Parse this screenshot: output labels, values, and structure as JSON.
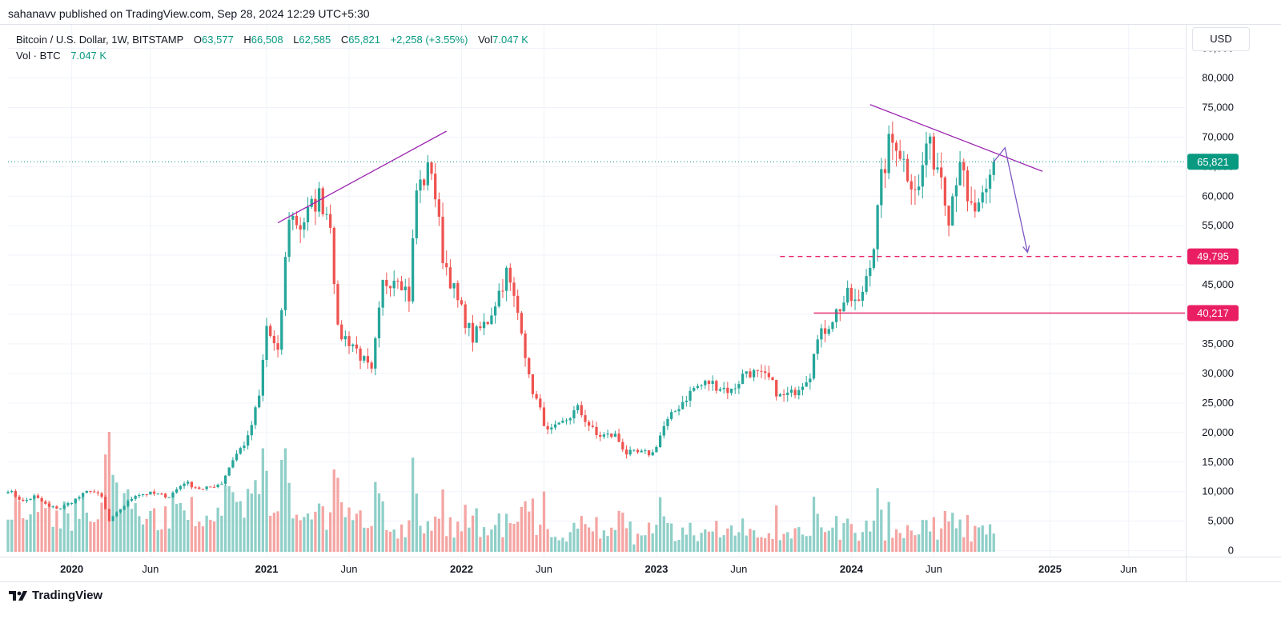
{
  "header": {
    "publisher_line": "sahanavv published on TradingView.com, Sep 28, 2024 12:29 UTC+5:30"
  },
  "legend": {
    "symbol": "Bitcoin / U.S. Dollar, 1W, BITSTAMP",
    "open_label": "O",
    "open": "63,577",
    "high_label": "H",
    "high": "66,508",
    "low_label": "L",
    "low": "62,585",
    "close_label": "C",
    "close": "65,821",
    "change": "+2,258 (+3.55%)",
    "vol_label": "Vol",
    "vol": "7.047 K",
    "vol_row_label": "Vol · BTC",
    "vol_row_value": "7.047 K"
  },
  "toolbar": {
    "currency": "USD"
  },
  "brand": {
    "name": "TradingView"
  },
  "colors": {
    "up": "#26a69a",
    "down": "#ef5350",
    "vol_up": "#8fcfc8",
    "vol_down": "#f4a5a3",
    "trendline": "#9c27b0",
    "support": "#e91e63",
    "last_price": "#089981",
    "grid": "#f0f3fa",
    "axis_text": "#131722"
  },
  "chart_data": {
    "type": "candlestick",
    "interval": "1W",
    "y_axis": {
      "ticks": [
        0,
        5000,
        10000,
        15000,
        20000,
        25000,
        30000,
        35000,
        40000,
        45000,
        50000,
        55000,
        60000,
        65000,
        70000,
        75000,
        80000,
        85000
      ],
      "tick_labels": [
        "0",
        "5,000",
        "10,000",
        "15,000",
        "20,000",
        "25,000",
        "30,000",
        "35,000",
        "40,000",
        "45,000",
        "50,000",
        "55,000",
        "60,000",
        "65,000",
        "70,000",
        "75,000",
        "80,000",
        "85,000"
      ],
      "range": [
        -1000,
        89000
      ],
      "side": "right"
    },
    "x_axis": {
      "range": [
        "2019-09-09",
        "2025-09-15"
      ],
      "ticks": [
        {
          "date": "2020-01-06",
          "label": "2020",
          "bold": true
        },
        {
          "date": "2020-06-01",
          "label": "Jun",
          "bold": false
        },
        {
          "date": "2021-01-04",
          "label": "2021",
          "bold": true
        },
        {
          "date": "2021-06-07",
          "label": "Jun",
          "bold": false
        },
        {
          "date": "2022-01-03",
          "label": "2022",
          "bold": true
        },
        {
          "date": "2022-06-06",
          "label": "Jun",
          "bold": false
        },
        {
          "date": "2023-01-02",
          "label": "2023",
          "bold": true
        },
        {
          "date": "2023-06-05",
          "label": "Jun",
          "bold": false
        },
        {
          "date": "2024-01-01",
          "label": "2024",
          "bold": true
        },
        {
          "date": "2024-06-03",
          "label": "Jun",
          "bold": false
        },
        {
          "date": "2025-01-06",
          "label": "2025",
          "bold": true
        },
        {
          "date": "2025-06-02",
          "label": "Jun",
          "bold": false
        }
      ]
    },
    "price_series": [
      {
        "date": "2019-09-09",
        "close": 10300
      },
      {
        "date": "2019-10-07",
        "close": 8300
      },
      {
        "date": "2019-10-28",
        "close": 9200
      },
      {
        "date": "2019-11-25",
        "close": 7400
      },
      {
        "date": "2019-12-16",
        "close": 7200
      },
      {
        "date": "2020-01-13",
        "close": 8700
      },
      {
        "date": "2020-02-10",
        "close": 10300
      },
      {
        "date": "2020-03-02",
        "close": 9000
      },
      {
        "date": "2020-03-16",
        "close": 5000
      },
      {
        "date": "2020-04-06",
        "close": 7000
      },
      {
        "date": "2020-05-04",
        "close": 9500
      },
      {
        "date": "2020-06-01",
        "close": 9700
      },
      {
        "date": "2020-07-06",
        "close": 9200
      },
      {
        "date": "2020-08-03",
        "close": 11600
      },
      {
        "date": "2020-09-07",
        "close": 10300
      },
      {
        "date": "2020-10-12",
        "close": 11500
      },
      {
        "date": "2020-11-02",
        "close": 15500
      },
      {
        "date": "2020-11-30",
        "close": 19000
      },
      {
        "date": "2020-12-21",
        "close": 26000
      },
      {
        "date": "2021-01-04",
        "close": 38000
      },
      {
        "date": "2021-01-25",
        "close": 33000
      },
      {
        "date": "2021-02-15",
        "close": 57000
      },
      {
        "date": "2021-03-08",
        "close": 55000
      },
      {
        "date": "2021-04-12",
        "close": 60000
      },
      {
        "date": "2021-05-03",
        "close": 56000
      },
      {
        "date": "2021-05-17",
        "close": 37000
      },
      {
        "date": "2021-06-14",
        "close": 35000
      },
      {
        "date": "2021-07-19",
        "close": 30000
      },
      {
        "date": "2021-08-09",
        "close": 45000
      },
      {
        "date": "2021-09-06",
        "close": 47000
      },
      {
        "date": "2021-09-27",
        "close": 43000
      },
      {
        "date": "2021-10-11",
        "close": 61000
      },
      {
        "date": "2021-11-08",
        "close": 65000
      },
      {
        "date": "2021-11-29",
        "close": 50000
      },
      {
        "date": "2021-12-27",
        "close": 42000
      },
      {
        "date": "2022-01-24",
        "close": 36000
      },
      {
        "date": "2022-02-21",
        "close": 39000
      },
      {
        "date": "2022-03-28",
        "close": 47000
      },
      {
        "date": "2022-04-25",
        "close": 38000
      },
      {
        "date": "2022-05-09",
        "close": 29000
      },
      {
        "date": "2022-06-13",
        "close": 20000
      },
      {
        "date": "2022-07-04",
        "close": 21000
      },
      {
        "date": "2022-08-08",
        "close": 24000
      },
      {
        "date": "2022-09-12",
        "close": 19500
      },
      {
        "date": "2022-10-17",
        "close": 19500
      },
      {
        "date": "2022-11-07",
        "close": 16500
      },
      {
        "date": "2022-12-26",
        "close": 16500
      },
      {
        "date": "2023-01-16",
        "close": 21000
      },
      {
        "date": "2023-02-13",
        "close": 24500
      },
      {
        "date": "2023-03-13",
        "close": 27500
      },
      {
        "date": "2023-04-10",
        "close": 28500
      },
      {
        "date": "2023-05-22",
        "close": 27000
      },
      {
        "date": "2023-06-19",
        "close": 30500
      },
      {
        "date": "2023-07-31",
        "close": 29000
      },
      {
        "date": "2023-08-21",
        "close": 26000
      },
      {
        "date": "2023-09-11",
        "close": 26500
      },
      {
        "date": "2023-10-16",
        "close": 30000
      },
      {
        "date": "2023-10-23",
        "close": 34500
      },
      {
        "date": "2023-11-27",
        "close": 39500
      },
      {
        "date": "2023-12-25",
        "close": 43000
      },
      {
        "date": "2024-01-15",
        "close": 41500
      },
      {
        "date": "2024-02-12",
        "close": 52000
      },
      {
        "date": "2024-02-26",
        "close": 62500
      },
      {
        "date": "2024-03-11",
        "close": 68500
      },
      {
        "date": "2024-03-25",
        "close": 69500
      },
      {
        "date": "2024-04-15",
        "close": 64000
      },
      {
        "date": "2024-05-06",
        "close": 61000
      },
      {
        "date": "2024-05-20",
        "close": 69000
      },
      {
        "date": "2024-06-17",
        "close": 64000
      },
      {
        "date": "2024-07-01",
        "close": 57000
      },
      {
        "date": "2024-07-22",
        "close": 67000
      },
      {
        "date": "2024-08-05",
        "close": 58000
      },
      {
        "date": "2024-08-26",
        "close": 57500
      },
      {
        "date": "2024-09-09",
        "close": 60000
      },
      {
        "date": "2024-09-23",
        "close": 65821
      }
    ],
    "trendlines": [
      {
        "kind": "rising-resistance",
        "from": {
          "date": "2021-01-25",
          "price": 55500
        },
        "to": {
          "date": "2021-12-06",
          "price": 71000
        }
      },
      {
        "kind": "falling-resistance",
        "from": {
          "date": "2024-02-05",
          "price": 75500
        },
        "to": {
          "date": "2024-12-23",
          "price": 64200
        }
      }
    ],
    "projection_arrow": {
      "from": {
        "date": "2024-09-23",
        "price": 65821
      },
      "peak": {
        "date": "2024-10-14",
        "price": 68200
      },
      "to": {
        "date": "2024-11-25",
        "price": 50500
      }
    },
    "levels": [
      {
        "price": 49795,
        "label": "49,795",
        "style": "dashed",
        "from_date": "2023-08-21"
      },
      {
        "price": 40217,
        "label": "40,217",
        "style": "solid",
        "from_date": "2023-10-23"
      }
    ],
    "last_price": {
      "price": 65821,
      "label": "65,821"
    },
    "volume_axis_max": 80000
  }
}
